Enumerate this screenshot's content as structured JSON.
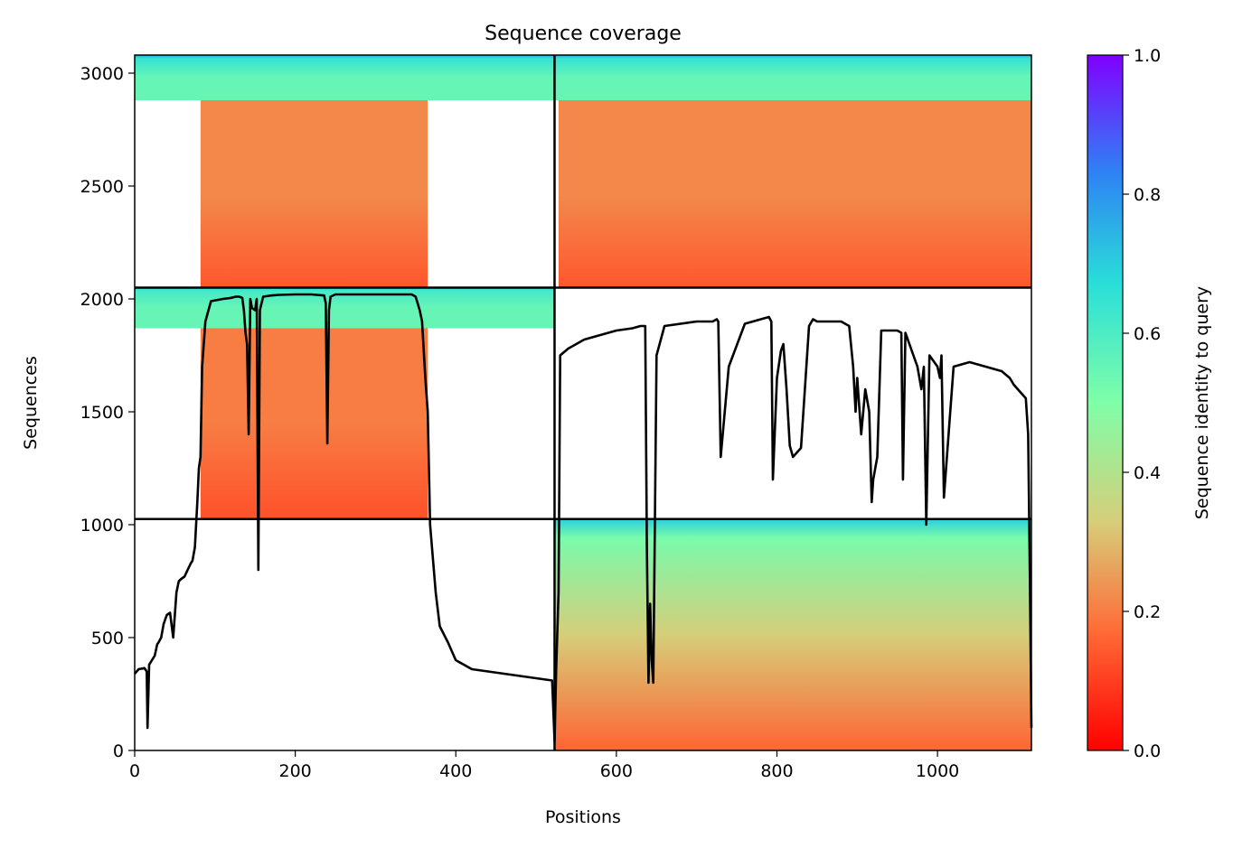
{
  "chart_data": {
    "type": "heatmap",
    "title": "Sequence coverage",
    "xlabel": "Positions",
    "ylabel": "Sequences",
    "xlim": [
      0,
      1117
    ],
    "ylim": [
      0,
      3080
    ],
    "x_ticks": [
      {
        "value": 0,
        "label": "0"
      },
      {
        "value": 200,
        "label": "200"
      },
      {
        "value": 400,
        "label": "400"
      },
      {
        "value": 600,
        "label": "600"
      },
      {
        "value": 800,
        "label": "800"
      },
      {
        "value": 1000,
        "label": "1000"
      }
    ],
    "y_ticks": [
      {
        "value": 0,
        "label": "0"
      },
      {
        "value": 500,
        "label": "500"
      },
      {
        "value": 1000,
        "label": "1000"
      },
      {
        "value": 1500,
        "label": "1500"
      },
      {
        "value": 2000,
        "label": "2000"
      },
      {
        "value": 2500,
        "label": "2500"
      },
      {
        "value": 3000,
        "label": "3000"
      }
    ],
    "grid": false,
    "chain_boundaries": {
      "positions": [
        523
      ],
      "sequences": [
        1025,
        2050
      ]
    },
    "colorbar": {
      "label": "Sequence identity to query",
      "colormap": "rainbow",
      "range": [
        0,
        1
      ],
      "ticks": [
        {
          "value": 0.0,
          "label": "0.0"
        },
        {
          "value": 0.2,
          "label": "0.2"
        },
        {
          "value": 0.4,
          "label": "0.4"
        },
        {
          "value": 0.6,
          "label": "0.6"
        },
        {
          "value": 0.8,
          "label": "0.8"
        },
        {
          "value": 1.0,
          "label": "1.0"
        }
      ]
    },
    "coverage_blocks": [
      {
        "x": [
          0,
          523
        ],
        "y": [
          2880,
          3080
        ],
        "identity": 0.55,
        "top_identity": 0.75
      },
      {
        "x": [
          82,
          365
        ],
        "y": [
          2050,
          2880
        ],
        "identity": 0.22,
        "low_identity": 0.14
      },
      {
        "x": [
          523,
          1117
        ],
        "y": [
          2880,
          3080
        ],
        "identity": 0.55,
        "top_identity": 0.75
      },
      {
        "x": [
          528,
          1117
        ],
        "y": [
          2050,
          2880
        ],
        "identity": 0.22,
        "low_identity": 0.14
      },
      {
        "x": [
          0,
          523
        ],
        "y": [
          1870,
          2050
        ],
        "identity": 0.55,
        "top_identity": 0.68
      },
      {
        "x": [
          82,
          365
        ],
        "y": [
          1025,
          1870
        ],
        "identity": 0.2,
        "low_identity": 0.13
      },
      {
        "x": [
          523,
          1117
        ],
        "y": [
          0,
          1025
        ],
        "identity": 0.33,
        "top_identity": 0.7,
        "low_identity": 0.16
      }
    ],
    "series": [
      {
        "type": "line",
        "color": "#000000",
        "x": [
          0,
          5,
          12,
          15,
          16,
          18,
          25,
          28,
          30,
          33,
          36,
          40,
          44,
          48,
          52,
          55,
          58,
          62,
          66,
          70,
          72,
          75,
          78,
          80,
          82,
          84,
          88,
          95,
          110,
          120,
          126,
          130,
          134,
          136,
          138,
          140,
          142,
          144,
          146,
          150,
          152,
          154,
          156,
          160,
          170,
          180,
          200,
          220,
          236,
          238,
          240,
          242,
          244,
          250,
          300,
          340,
          345,
          350,
          355,
          358,
          362,
          365,
          368,
          375,
          380,
          390,
          400,
          420,
          440,
          460,
          480,
          500,
          520,
          523,
          525,
          528,
          530,
          540,
          560,
          580,
          600,
          620,
          630,
          634,
          636,
          638,
          640,
          642,
          644,
          646,
          650,
          660,
          700,
          720,
          725,
          727,
          730,
          740,
          760,
          780,
          790,
          793,
          795,
          800,
          805,
          808,
          812,
          816,
          820,
          830,
          840,
          845,
          850,
          880,
          890,
          895,
          898,
          900,
          905,
          910,
          915,
          918,
          920,
          925,
          930,
          940,
          950,
          955,
          957,
          960,
          975,
          980,
          983,
          986,
          990,
          1000,
          1003,
          1005,
          1008,
          1020,
          1040,
          1060,
          1080,
          1090,
          1095,
          1100,
          1105,
          1110,
          1113,
          1115,
          1117
        ],
        "y": [
          340,
          360,
          365,
          350,
          100,
          380,
          420,
          470,
          480,
          500,
          560,
          600,
          610,
          500,
          700,
          750,
          760,
          770,
          800,
          830,
          840,
          900,
          1100,
          1250,
          1300,
          1700,
          1900,
          1990,
          2000,
          2005,
          2010,
          2010,
          2005,
          1950,
          1850,
          1800,
          1400,
          2000,
          1960,
          1950,
          2000,
          800,
          1950,
          2010,
          2015,
          2018,
          2020,
          2020,
          2015,
          1980,
          1360,
          1950,
          2010,
          2020,
          2020,
          2020,
          2020,
          2010,
          1950,
          1900,
          1650,
          1500,
          1000,
          700,
          550,
          480,
          400,
          360,
          350,
          340,
          330,
          320,
          310,
          40,
          350,
          700,
          1750,
          1780,
          1820,
          1840,
          1860,
          1870,
          1880,
          1880,
          1880,
          900,
          300,
          650,
          400,
          300,
          1750,
          1880,
          1900,
          1900,
          1910,
          1900,
          1300,
          1700,
          1890,
          1910,
          1920,
          1900,
          1200,
          1650,
          1770,
          1800,
          1600,
          1350,
          1300,
          1340,
          1880,
          1910,
          1900,
          1900,
          1880,
          1700,
          1500,
          1650,
          1400,
          1600,
          1500,
          1100,
          1200,
          1300,
          1860,
          1860,
          1860,
          1850,
          1200,
          1850,
          1700,
          1600,
          1700,
          1000,
          1750,
          1700,
          1650,
          1750,
          1120,
          1700,
          1720,
          1700,
          1680,
          1650,
          1620,
          1600,
          1580,
          1560,
          1400,
          800,
          100
        ]
      }
    ]
  }
}
